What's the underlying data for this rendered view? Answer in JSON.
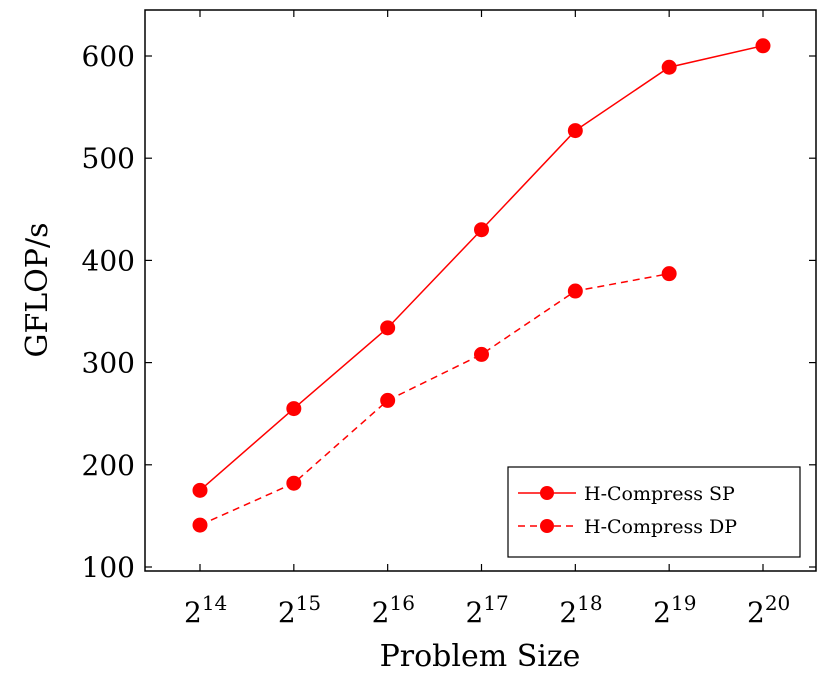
{
  "chart_data": {
    "type": "line",
    "title": "",
    "xlabel": "Problem Size",
    "ylabel": "GFLOP/s",
    "x_scale": "log2",
    "x": [
      16384,
      32768,
      65536,
      131072,
      262144,
      524288,
      1048576
    ],
    "x_tick_labels": [
      {
        "base": "2",
        "exp": "14"
      },
      {
        "base": "2",
        "exp": "15"
      },
      {
        "base": "2",
        "exp": "16"
      },
      {
        "base": "2",
        "exp": "17"
      },
      {
        "base": "2",
        "exp": "18"
      },
      {
        "base": "2",
        "exp": "19"
      },
      {
        "base": "2",
        "exp": "20"
      }
    ],
    "y_ticks": [
      100,
      200,
      300,
      400,
      500,
      600
    ],
    "ylim": [
      95,
      655
    ],
    "grid": false,
    "legend_position": "bottom-right",
    "series": [
      {
        "name": "H-Compress SP",
        "style": "solid",
        "color": "#ff0000",
        "values": [
          175,
          255,
          334,
          430,
          527,
          589,
          610
        ]
      },
      {
        "name": "H-Compress DP",
        "style": "dashed",
        "color": "#ff0000",
        "values": [
          141,
          182,
          263,
          308,
          370,
          387,
          null
        ]
      }
    ]
  }
}
